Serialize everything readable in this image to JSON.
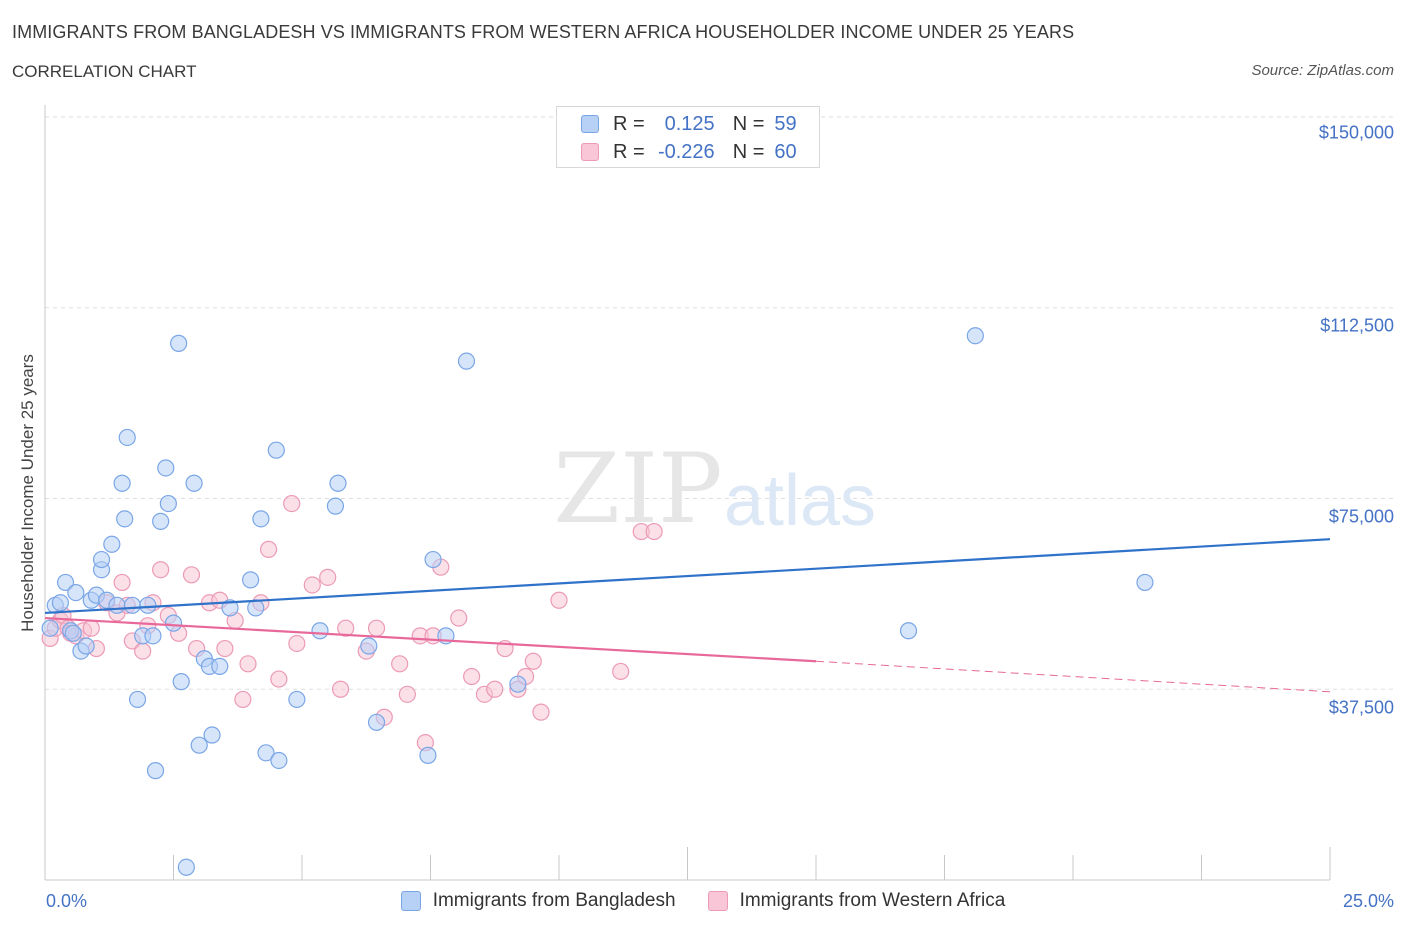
{
  "header": {
    "title": "IMMIGRANTS FROM BANGLADESH VS IMMIGRANTS FROM WESTERN AFRICA HOUSEHOLDER INCOME UNDER 25 YEARS",
    "subtitle": "CORRELATION CHART",
    "source": "Source: ZipAtlas.com"
  },
  "stats_legend": {
    "r_label": "R =",
    "n_label": "N =",
    "rows": [
      {
        "r": "0.125",
        "n": "59"
      },
      {
        "r": "-0.226",
        "n": "60"
      }
    ]
  },
  "colors": {
    "series1_fill": "#b7d0f5",
    "series1_stroke": "#7aa6e6",
    "series1_line": "#2f72c9",
    "series2_fill": "#f8c6d6",
    "series2_stroke": "#ec9ab6",
    "series2_line": "#e8689a",
    "tick_text": "#4472c4",
    "grid": "#dddddd"
  },
  "watermark": {
    "part1": "ZIP",
    "part2": "atlas"
  },
  "chart_data": {
    "type": "scatter",
    "title": "IMMIGRANTS FROM BANGLADESH VS IMMIGRANTS FROM WESTERN AFRICA HOUSEHOLDER INCOME UNDER 25 YEARS",
    "subtitle": "CORRELATION CHART",
    "xlabel": "",
    "ylabel": "Householder Income Under 25 years",
    "xlim": [
      0,
      25
    ],
    "ylim": [
      0,
      150000
    ],
    "x_tick_labels": [
      "0.0%",
      "25.0%"
    ],
    "y_ticks": [
      37500,
      75000,
      112500,
      150000
    ],
    "y_tick_labels": [
      "$37,500",
      "$75,000",
      "$112,500",
      "$150,000"
    ],
    "grid": true,
    "legend": "bottom-center",
    "series": [
      {
        "name": "Immigrants from Bangladesh",
        "points": [
          [
            0.1,
            49500
          ],
          [
            0.2,
            54000
          ],
          [
            0.3,
            54500
          ],
          [
            0.4,
            58500
          ],
          [
            0.5,
            49000
          ],
          [
            0.55,
            48500
          ],
          [
            0.6,
            56500
          ],
          [
            0.7,
            45000
          ],
          [
            0.8,
            46000
          ],
          [
            0.9,
            55000
          ],
          [
            1.0,
            56000
          ],
          [
            1.1,
            61000
          ],
          [
            1.1,
            63000
          ],
          [
            1.2,
            55000
          ],
          [
            1.3,
            66000
          ],
          [
            1.4,
            54000
          ],
          [
            1.5,
            78000
          ],
          [
            1.55,
            71000
          ],
          [
            1.6,
            87000
          ],
          [
            1.7,
            54000
          ],
          [
            1.8,
            35500
          ],
          [
            1.9,
            48000
          ],
          [
            2.0,
            54000
          ],
          [
            2.1,
            48000
          ],
          [
            2.15,
            21500
          ],
          [
            2.25,
            70500
          ],
          [
            2.35,
            81000
          ],
          [
            2.4,
            74000
          ],
          [
            2.5,
            50500
          ],
          [
            2.6,
            105500
          ],
          [
            2.65,
            39000
          ],
          [
            2.75,
            2500
          ],
          [
            2.9,
            78000
          ],
          [
            3.0,
            26500
          ],
          [
            3.1,
            43500
          ],
          [
            3.2,
            42000
          ],
          [
            3.25,
            28500
          ],
          [
            3.4,
            42000
          ],
          [
            3.6,
            53500
          ],
          [
            4.0,
            59000
          ],
          [
            4.1,
            53500
          ],
          [
            4.2,
            71000
          ],
          [
            4.3,
            25000
          ],
          [
            4.5,
            84500
          ],
          [
            4.55,
            23500
          ],
          [
            4.9,
            35500
          ],
          [
            5.35,
            49000
          ],
          [
            5.65,
            73500
          ],
          [
            5.7,
            78000
          ],
          [
            6.3,
            46000
          ],
          [
            6.45,
            31000
          ],
          [
            7.45,
            24500
          ],
          [
            7.55,
            63000
          ],
          [
            7.8,
            48000
          ],
          [
            8.2,
            102000
          ],
          [
            9.2,
            38500
          ],
          [
            16.8,
            49000
          ],
          [
            18.1,
            107000
          ],
          [
            21.4,
            58500
          ]
        ]
      },
      {
        "name": "Immigrants from Western Africa",
        "points": [
          [
            0.1,
            47500
          ],
          [
            0.2,
            49500
          ],
          [
            0.3,
            51000
          ],
          [
            0.35,
            52000
          ],
          [
            0.45,
            49500
          ],
          [
            0.5,
            48500
          ],
          [
            0.6,
            48000
          ],
          [
            0.75,
            49000
          ],
          [
            0.9,
            49500
          ],
          [
            1.0,
            45500
          ],
          [
            1.2,
            54500
          ],
          [
            1.4,
            52500
          ],
          [
            1.5,
            58500
          ],
          [
            1.6,
            54000
          ],
          [
            1.7,
            47000
          ],
          [
            1.9,
            45000
          ],
          [
            2.0,
            50000
          ],
          [
            2.1,
            54500
          ],
          [
            2.25,
            61000
          ],
          [
            2.4,
            52000
          ],
          [
            2.6,
            48500
          ],
          [
            2.85,
            60000
          ],
          [
            2.95,
            45500
          ],
          [
            3.2,
            54500
          ],
          [
            3.4,
            55000
          ],
          [
            3.5,
            45500
          ],
          [
            3.7,
            51000
          ],
          [
            3.85,
            35500
          ],
          [
            3.95,
            42500
          ],
          [
            4.2,
            54500
          ],
          [
            4.35,
            65000
          ],
          [
            4.55,
            39500
          ],
          [
            4.8,
            74000
          ],
          [
            4.9,
            46500
          ],
          [
            5.2,
            58000
          ],
          [
            5.5,
            59500
          ],
          [
            5.75,
            37500
          ],
          [
            5.85,
            49500
          ],
          [
            6.25,
            45000
          ],
          [
            6.45,
            49500
          ],
          [
            6.6,
            32000
          ],
          [
            6.9,
            42500
          ],
          [
            7.05,
            36500
          ],
          [
            7.3,
            48000
          ],
          [
            7.4,
            27000
          ],
          [
            7.55,
            48000
          ],
          [
            7.7,
            61500
          ],
          [
            8.05,
            51500
          ],
          [
            8.3,
            40000
          ],
          [
            8.55,
            36500
          ],
          [
            8.75,
            37500
          ],
          [
            8.95,
            45500
          ],
          [
            9.2,
            37500
          ],
          [
            9.35,
            40000
          ],
          [
            9.5,
            43000
          ],
          [
            9.65,
            33000
          ],
          [
            10.0,
            55000
          ],
          [
            11.2,
            41000
          ],
          [
            11.6,
            68500
          ],
          [
            11.85,
            68500
          ]
        ]
      }
    ],
    "trend_lines": [
      {
        "series": "Immigrants from Bangladesh",
        "x": [
          0,
          25
        ],
        "y": [
          52500,
          67000
        ],
        "style": "solid"
      },
      {
        "series": "Immigrants from Western Africa",
        "x": [
          0,
          15
        ],
        "y": [
          51500,
          43000
        ],
        "style": "solid"
      },
      {
        "series": "Immigrants from Western Africa",
        "x": [
          15,
          25
        ],
        "y": [
          43000,
          37000
        ],
        "style": "dashed"
      }
    ]
  }
}
